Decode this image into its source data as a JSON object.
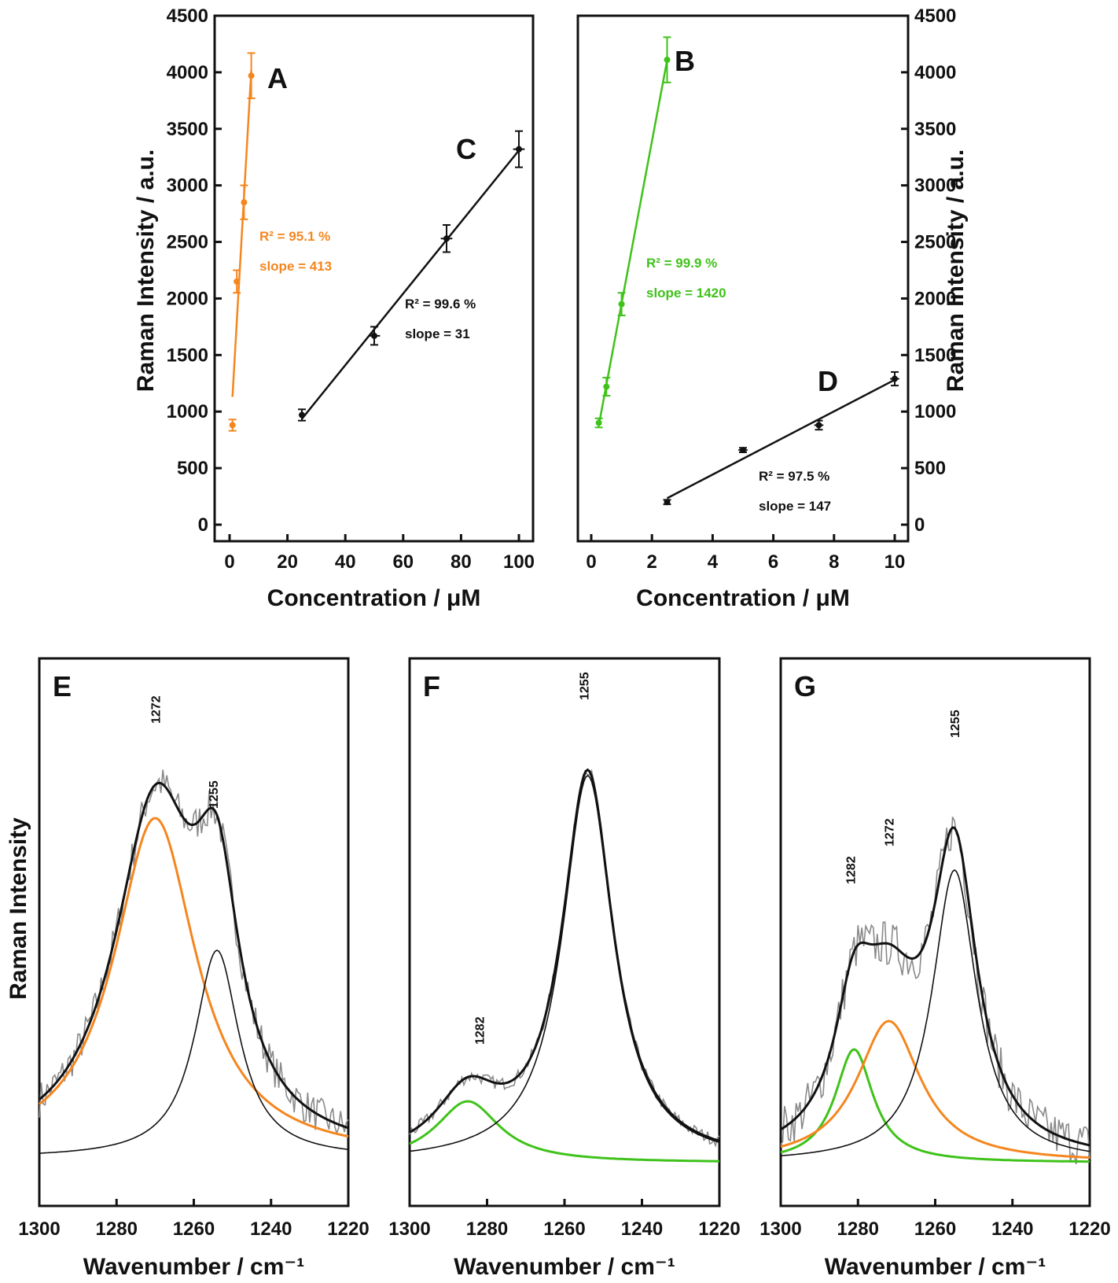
{
  "colors": {
    "orange": "#f5861f",
    "green": "#3fc21a",
    "black": "#111111",
    "raw": "#8a8a8a"
  },
  "chart_data": [
    {
      "id": "AC",
      "type": "scatter",
      "xlabel": "Concentration  /  μM",
      "ylabel": "Raman Intensity  / a.u.",
      "xlim": [
        -5,
        102
      ],
      "ylim": [
        0,
        4500
      ],
      "xticks": [
        0,
        20,
        40,
        60,
        80,
        100
      ],
      "yticks": [
        0,
        500,
        1000,
        1500,
        2000,
        2500,
        3000,
        3500,
        4000,
        4500
      ],
      "yaxis_side": "left",
      "series": [
        {
          "name": "A",
          "label": "A",
          "color": "orange",
          "x": [
            1,
            2.5,
            5,
            7.5
          ],
          "y": [
            880,
            2150,
            2850,
            3970
          ],
          "yerr": [
            50,
            100,
            150,
            200
          ],
          "xerr": [
            0.3,
            0.5,
            0.5,
            0.5
          ],
          "annotation": [
            "R² = 95.1 %",
            "slope = 413"
          ]
        },
        {
          "name": "C",
          "label": "C",
          "color": "black",
          "x": [
            25,
            50,
            75,
            100
          ],
          "y": [
            970,
            1670,
            2530,
            3320
          ],
          "yerr": [
            50,
            80,
            120,
            160
          ],
          "xerr": [
            1,
            2,
            2,
            2
          ],
          "annotation": [
            "R² = 99.6 %",
            "slope = 31"
          ]
        }
      ]
    },
    {
      "id": "BD",
      "type": "scatter",
      "xlabel": "Concentration  /  μM",
      "ylabel": "Raman Intensity  / a.u.",
      "xlim": [
        -0.4,
        10.2
      ],
      "ylim": [
        0,
        4500
      ],
      "xticks": [
        0,
        2,
        4,
        6,
        8,
        10
      ],
      "yticks": [
        0,
        500,
        1000,
        1500,
        2000,
        2500,
        3000,
        3500,
        4000,
        4500
      ],
      "yaxis_side": "right",
      "series": [
        {
          "name": "B",
          "label": "B",
          "color": "green",
          "x": [
            0.25,
            0.5,
            1,
            2.5
          ],
          "y": [
            900,
            1220,
            1950,
            4110
          ],
          "yerr": [
            40,
            80,
            100,
            200
          ],
          "xerr": [
            0.05,
            0.1,
            0.1,
            0.05
          ],
          "annotation": [
            "R² = 99.9 %",
            "slope = 1420"
          ]
        },
        {
          "name": "D",
          "label": "D",
          "color": "black",
          "x": [
            2.5,
            5,
            7.5,
            10
          ],
          "y": [
            200,
            660,
            880,
            1290
          ],
          "yerr": [
            20,
            20,
            40,
            60
          ],
          "xerr": [
            0.05,
            0.15,
            0.15,
            0.15
          ],
          "annotation": [
            "R² = 97.5 %",
            "slope = 147"
          ]
        }
      ]
    },
    {
      "id": "E",
      "type": "line",
      "label": "E",
      "xlabel": "Wavenumber  /  cm⁻¹",
      "ylabel": "Raman Intensity",
      "xlim": [
        1300,
        1220
      ],
      "xticks": [
        1300,
        1280,
        1260,
        1240,
        1220
      ],
      "baseline": 0.06,
      "components": [
        {
          "name": "band-1272",
          "color": "orange",
          "center": 1270,
          "amp": 0.72,
          "hwhm": 13
        },
        {
          "name": "band-1255",
          "color": "black",
          "center": 1254,
          "amp": 0.44,
          "hwhm": 7
        }
      ],
      "noise": 0.035,
      "peak_labels": [
        {
          "text": "1272",
          "x": 1270,
          "y": 0.98
        },
        {
          "text": "1255",
          "x": 1255,
          "y": 0.8
        }
      ]
    },
    {
      "id": "F",
      "type": "line",
      "label": "F",
      "xlabel": "Wavenumber  /  cm⁻¹",
      "ylabel": "",
      "xlim": [
        1300,
        1220
      ],
      "xticks": [
        1300,
        1280,
        1260,
        1240,
        1220
      ],
      "baseline": 0.05,
      "components": [
        {
          "name": "band-1282",
          "color": "green",
          "center": 1285,
          "amp": 0.13,
          "hwhm": 10
        },
        {
          "name": "band-1255",
          "color": "black",
          "center": 1254,
          "amp": 0.82,
          "hwhm": 8
        }
      ],
      "noise": 0.012,
      "peak_labels": [
        {
          "text": "1255",
          "x": 1255,
          "y": 1.03
        },
        {
          "text": "1282",
          "x": 1282,
          "y": 0.3
        }
      ]
    },
    {
      "id": "G",
      "type": "line",
      "label": "G",
      "xlabel": "Wavenumber  /  cm⁻¹",
      "ylabel": "",
      "xlim": [
        1300,
        1220
      ],
      "xticks": [
        1300,
        1280,
        1260,
        1240,
        1220
      ],
      "baseline": 0.05,
      "components": [
        {
          "name": "band-1282",
          "color": "green",
          "center": 1281,
          "amp": 0.24,
          "hwhm": 6
        },
        {
          "name": "band-1272",
          "color": "orange",
          "center": 1272,
          "amp": 0.3,
          "hwhm": 10
        },
        {
          "name": "band-1255",
          "color": "black",
          "center": 1255,
          "amp": 0.62,
          "hwhm": 7
        }
      ],
      "noise": 0.045,
      "peak_labels": [
        {
          "text": "1255",
          "x": 1255,
          "y": 0.95
        },
        {
          "text": "1272",
          "x": 1272,
          "y": 0.72
        },
        {
          "text": "1282",
          "x": 1282,
          "y": 0.64
        }
      ]
    }
  ]
}
